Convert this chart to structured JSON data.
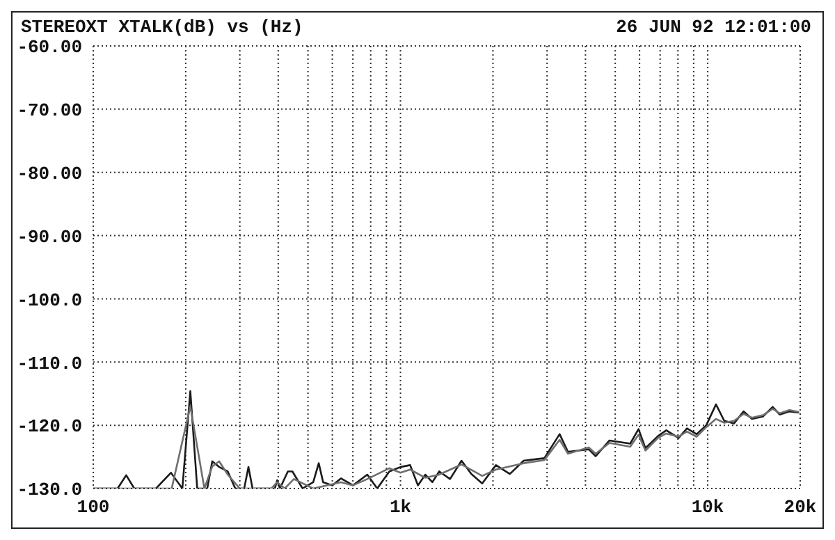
{
  "chart_data": {
    "type": "line",
    "title": "STEREOXT XTALK(dB) vs  (Hz)",
    "annotations": [
      "26 JUN 92 12:01:00"
    ],
    "xlim": [
      100,
      20000
    ],
    "ylim": [
      -130,
      -60
    ],
    "log": "x",
    "grid": true,
    "marker": "none",
    "line_style": "solid",
    "xticks": [
      {
        "value": 100,
        "label": "100"
      },
      {
        "value": 200,
        "label": null
      },
      {
        "value": 300,
        "label": null
      },
      {
        "value": 400,
        "label": null
      },
      {
        "value": 500,
        "label": null
      },
      {
        "value": 600,
        "label": null
      },
      {
        "value": 700,
        "label": null
      },
      {
        "value": 800,
        "label": null
      },
      {
        "value": 900,
        "label": null
      },
      {
        "value": 1000,
        "label": "1k"
      },
      {
        "value": 2000,
        "label": null
      },
      {
        "value": 3000,
        "label": null
      },
      {
        "value": 4000,
        "label": null
      },
      {
        "value": 5000,
        "label": null
      },
      {
        "value": 6000,
        "label": null
      },
      {
        "value": 7000,
        "label": null
      },
      {
        "value": 8000,
        "label": null
      },
      {
        "value": 9000,
        "label": null
      },
      {
        "value": 10000,
        "label": "10k"
      },
      {
        "value": 20000,
        "label": "20k"
      }
    ],
    "yticks": [
      {
        "value": -60,
        "label": "-60.00"
      },
      {
        "value": -70,
        "label": "-70.00"
      },
      {
        "value": -80,
        "label": "-80.00"
      },
      {
        "value": -90,
        "label": "-90.00"
      },
      {
        "value": -100,
        "label": "-100.0"
      },
      {
        "value": -110,
        "label": "-110.0"
      },
      {
        "value": -120,
        "label": "-120.0"
      },
      {
        "value": -130,
        "label": "-130.0"
      }
    ],
    "series": [
      {
        "color": "#1a1a1a",
        "x": [
          100,
          120,
          128,
          136,
          160,
          179,
          195,
          207,
          218,
          235,
          244,
          257,
          274,
          290,
          310,
          320,
          330,
          390,
          397,
          405,
          430,
          445,
          480,
          520,
          542,
          560,
          600,
          640,
          700,
          780,
          840,
          920,
          1000,
          1075,
          1140,
          1205,
          1270,
          1337,
          1450,
          1580,
          1700,
          1845,
          2045,
          2270,
          2518,
          2940,
          3296,
          3508,
          4100,
          4316,
          4790,
          5595,
          5953,
          6270,
          6890,
          7330,
          8040,
          8560,
          9200,
          9890,
          10640,
          11320,
          12180,
          13090,
          13930,
          15140,
          16280,
          17140,
          18440,
          19820
        ],
        "values": [
          -130,
          -130,
          -127.9,
          -130,
          -130,
          -127.5,
          -130,
          -114.6,
          -130,
          -130,
          -125.7,
          -126.6,
          -127.3,
          -130,
          -130,
          -126.6,
          -130,
          -130,
          -128.7,
          -130,
          -127.3,
          -127.3,
          -130,
          -129,
          -126,
          -129,
          -129.5,
          -128.4,
          -129.5,
          -127.8,
          -130,
          -127.3,
          -126.6,
          -126.3,
          -129.5,
          -127.8,
          -129,
          -127.3,
          -128.5,
          -125.6,
          -127.7,
          -129.2,
          -126.3,
          -127.7,
          -125.6,
          -125.2,
          -121.4,
          -124.2,
          -123.8,
          -124.9,
          -122.4,
          -122.9,
          -120.6,
          -123.6,
          -121.7,
          -120.8,
          -122,
          -120.5,
          -121.4,
          -120,
          -116.7,
          -119.3,
          -119.7,
          -117.8,
          -119,
          -118.6,
          -117.1,
          -118.3,
          -117.8,
          -118
        ]
      },
      {
        "color": "#6e6e6e",
        "x": [
          100,
          180,
          207,
          230,
          244,
          257,
          274,
          300,
          380,
          397,
          420,
          450,
          520,
          640,
          700,
          780,
          920,
          1000,
          1075,
          1205,
          1337,
          1580,
          1845,
          2045,
          2270,
          2518,
          2940,
          3296,
          3508,
          4100,
          4316,
          4790,
          5595,
          5953,
          6270,
          6890,
          7330,
          8040,
          8560,
          9200,
          9890,
          10640,
          11320,
          12180,
          13090,
          13930,
          15140,
          16280,
          17140,
          18440,
          19820
        ],
        "values": [
          -130,
          -130,
          -117,
          -130,
          -126.5,
          -125.7,
          -127.8,
          -130,
          -130,
          -129,
          -130,
          -128.5,
          -130,
          -129,
          -129.5,
          -128.5,
          -126.8,
          -127.5,
          -127,
          -128.3,
          -127.8,
          -126.2,
          -128,
          -127,
          -126.5,
          -126,
          -125.5,
          -122.3,
          -124.5,
          -123.5,
          -124.5,
          -122.8,
          -123.4,
          -121.5,
          -124,
          -122,
          -121.3,
          -121.8,
          -121,
          -121.8,
          -120.3,
          -119,
          -119.6,
          -119.3,
          -118.2,
          -118.8,
          -118.4,
          -117.4,
          -118.1,
          -117.6,
          -117.9
        ]
      }
    ]
  }
}
